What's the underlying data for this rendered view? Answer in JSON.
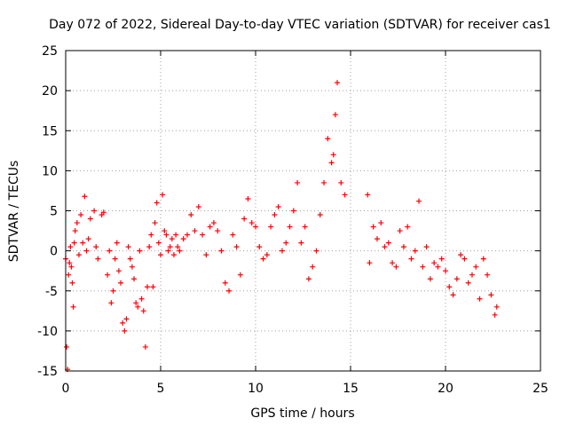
{
  "chart_data": {
    "type": "scatter",
    "title": "Day 072 of 2022, Sidereal Day-to-day VTEC variation (SDTVAR) for receiver cas1",
    "xlabel": "GPS time / hours",
    "ylabel": "SDTVAR / TECUs",
    "xlim": [
      0,
      25
    ],
    "ylim": [
      -15,
      25
    ],
    "xticks": [
      "0",
      "5",
      "10",
      "15",
      "20",
      "25"
    ],
    "yticks": [
      "-15",
      "-10",
      "-5",
      "0",
      "5",
      "10",
      "15",
      "20",
      "25"
    ],
    "grid": true,
    "marker": "plus",
    "color": "#ff0000",
    "series": [
      {
        "name": "SDTVAR",
        "x": [
          0.0,
          0.05,
          0.1,
          0.15,
          0.2,
          0.25,
          0.3,
          0.35,
          0.4,
          0.45,
          0.5,
          0.6,
          0.7,
          0.8,
          0.9,
          1.0,
          1.1,
          1.2,
          1.3,
          1.5,
          1.6,
          1.7,
          1.9,
          2.0,
          2.2,
          2.3,
          2.4,
          2.5,
          2.6,
          2.7,
          2.8,
          2.9,
          3.0,
          3.1,
          3.2,
          3.3,
          3.4,
          3.5,
          3.6,
          3.7,
          3.8,
          3.9,
          4.0,
          4.1,
          4.2,
          4.3,
          4.4,
          4.5,
          4.6,
          4.7,
          4.8,
          4.9,
          5.0,
          5.1,
          5.2,
          5.3,
          5.4,
          5.5,
          5.6,
          5.7,
          5.8,
          5.9,
          6.0,
          6.2,
          6.4,
          6.6,
          6.8,
          7.0,
          7.2,
          7.4,
          7.6,
          7.8,
          8.0,
          8.2,
          8.4,
          8.6,
          8.8,
          9.0,
          9.2,
          9.4,
          9.6,
          9.8,
          10.0,
          10.2,
          10.4,
          10.6,
          10.8,
          11.0,
          11.2,
          11.4,
          11.6,
          11.8,
          12.0,
          12.2,
          12.4,
          12.6,
          12.8,
          13.0,
          13.2,
          13.4,
          13.6,
          13.8,
          14.0,
          14.1,
          14.2,
          14.3,
          14.5,
          14.7,
          15.9,
          16.0,
          16.2,
          16.4,
          16.6,
          16.8,
          17.0,
          17.2,
          17.4,
          17.6,
          17.8,
          18.0,
          18.2,
          18.4,
          18.6,
          18.8,
          19.0,
          19.2,
          19.4,
          19.6,
          19.8,
          20.0,
          20.2,
          20.4,
          20.6,
          20.8,
          21.0,
          21.2,
          21.4,
          21.6,
          21.8,
          22.0,
          22.2,
          22.4,
          22.6,
          22.7
        ],
        "y": [
          -1.0,
          -12.0,
          -14.8,
          -3.0,
          -1.5,
          0.5,
          -2.0,
          -4.0,
          -7.0,
          1.0,
          2.5,
          3.5,
          -0.5,
          4.5,
          1.0,
          6.8,
          0.0,
          1.5,
          4.0,
          5.0,
          0.5,
          -1.0,
          4.5,
          4.8,
          -3.0,
          0.0,
          -6.5,
          -5.0,
          -1.0,
          1.0,
          -2.5,
          -4.0,
          -9.0,
          -10.0,
          -8.5,
          0.5,
          -1.0,
          -2.0,
          -3.5,
          -6.5,
          -7.0,
          0.0,
          -6.0,
          -7.5,
          -12.0,
          -4.5,
          0.5,
          2.0,
          -4.5,
          3.5,
          6.0,
          1.0,
          -0.5,
          7.0,
          2.5,
          2.0,
          0.0,
          0.5,
          1.5,
          -0.5,
          2.0,
          0.5,
          0.0,
          1.5,
          2.0,
          4.5,
          2.5,
          5.5,
          2.0,
          -0.5,
          3.0,
          3.5,
          2.5,
          0.0,
          -4.0,
          -5.0,
          2.0,
          0.5,
          -3.0,
          4.0,
          6.5,
          3.5,
          3.0,
          0.5,
          -1.0,
          -0.5,
          3.0,
          4.5,
          5.5,
          0.0,
          1.0,
          3.0,
          5.0,
          8.5,
          1.0,
          3.0,
          -3.5,
          -2.0,
          0.0,
          4.5,
          8.5,
          14.0,
          11.0,
          12.0,
          17.0,
          21.0,
          8.5,
          7.0,
          7.0,
          -1.5,
          3.0,
          1.5,
          3.5,
          0.5,
          1.0,
          -1.5,
          -2.0,
          2.5,
          0.5,
          3.0,
          -1.0,
          0.0,
          6.2,
          -2.0,
          0.5,
          -3.5,
          -1.5,
          -2.0,
          -1.0,
          -2.5,
          -4.5,
          -5.5,
          -3.5,
          -0.5,
          -1.0,
          -4.0,
          -3.0,
          -2.0,
          -6.0,
          -1.0,
          -3.0,
          -5.5,
          -8.0,
          -7.0
        ]
      }
    ]
  }
}
